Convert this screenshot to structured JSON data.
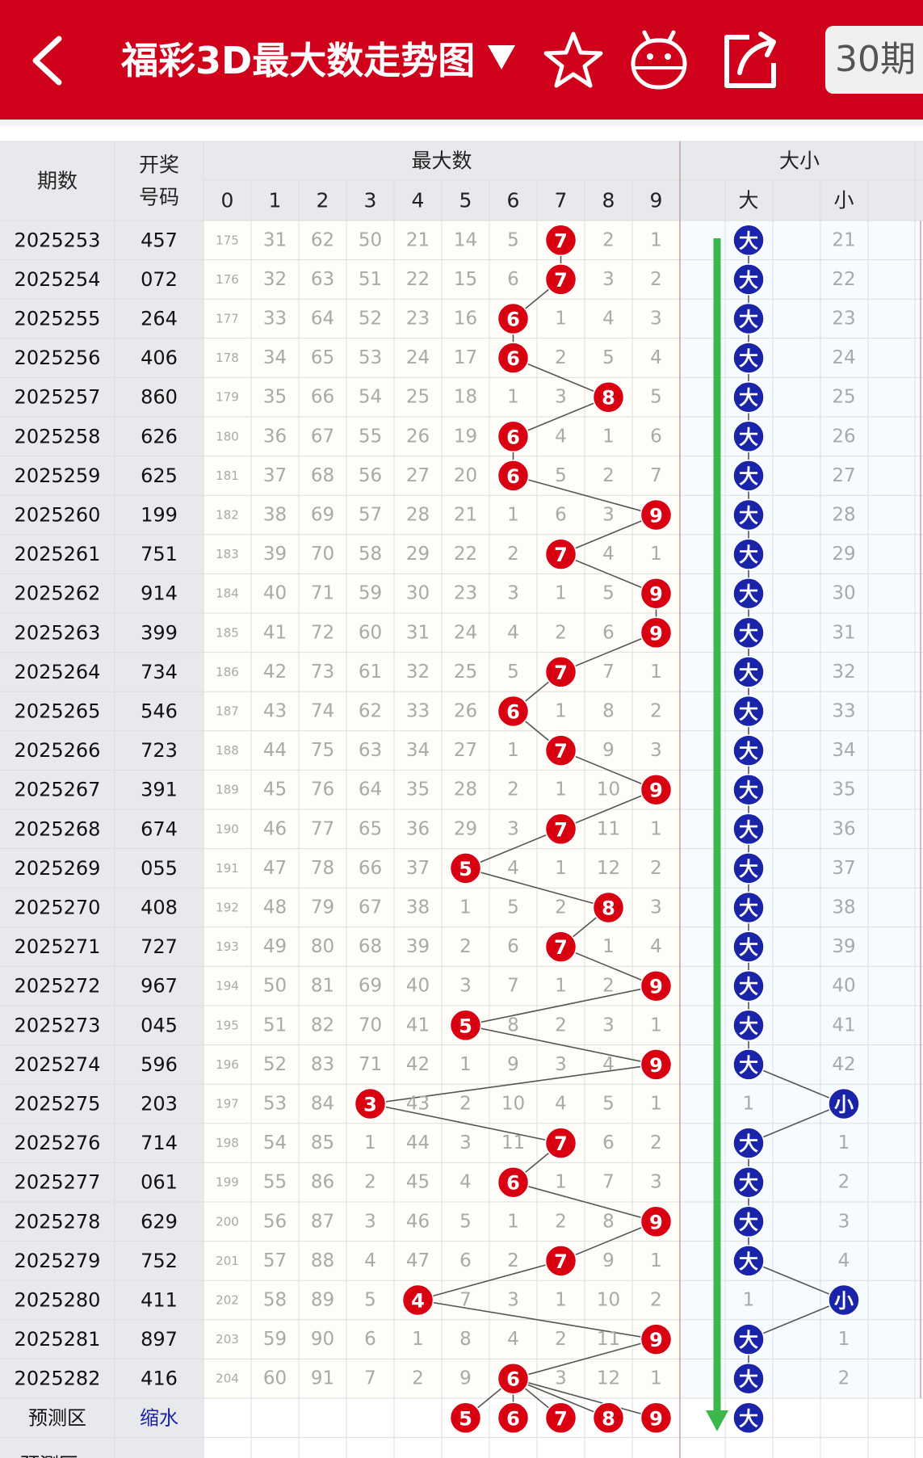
{
  "header": {
    "title": "福彩3D最大数走势图",
    "period_button": "30期"
  },
  "columns": {
    "issue": "期数",
    "draw_top": "开奖",
    "draw_bottom": "号码",
    "max_group": "最大数",
    "size_group": "大小",
    "digits": [
      "0",
      "1",
      "2",
      "3",
      "4",
      "5",
      "6",
      "7",
      "8",
      "9"
    ],
    "big": "大",
    "small": "小"
  },
  "rows": [
    {
      "issue": "2025253",
      "draw": "457",
      "miss": [
        "175",
        "31",
        "62",
        "50",
        "21",
        "14",
        "5",
        "7",
        "2",
        "1"
      ],
      "max": 7,
      "size": "大",
      "small_miss": "21"
    },
    {
      "issue": "2025254",
      "draw": "072",
      "miss": [
        "176",
        "32",
        "63",
        "51",
        "22",
        "15",
        "6",
        "7",
        "3",
        "2"
      ],
      "max": 7,
      "size": "大",
      "small_miss": "22"
    },
    {
      "issue": "2025255",
      "draw": "264",
      "miss": [
        "177",
        "33",
        "64",
        "52",
        "23",
        "16",
        "6",
        "1",
        "4",
        "3"
      ],
      "max": 6,
      "size": "大",
      "small_miss": "23"
    },
    {
      "issue": "2025256",
      "draw": "406",
      "miss": [
        "178",
        "34",
        "65",
        "53",
        "24",
        "17",
        "6",
        "2",
        "5",
        "4"
      ],
      "max": 6,
      "size": "大",
      "small_miss": "24"
    },
    {
      "issue": "2025257",
      "draw": "860",
      "miss": [
        "179",
        "35",
        "66",
        "54",
        "25",
        "18",
        "1",
        "3",
        "8",
        "5"
      ],
      "max": 8,
      "size": "大",
      "small_miss": "25"
    },
    {
      "issue": "2025258",
      "draw": "626",
      "miss": [
        "180",
        "36",
        "67",
        "55",
        "26",
        "19",
        "6",
        "4",
        "1",
        "6"
      ],
      "max": 6,
      "size": "大",
      "small_miss": "26"
    },
    {
      "issue": "2025259",
      "draw": "625",
      "miss": [
        "181",
        "37",
        "68",
        "56",
        "27",
        "20",
        "6",
        "5",
        "2",
        "7"
      ],
      "max": 6,
      "size": "大",
      "small_miss": "27"
    },
    {
      "issue": "2025260",
      "draw": "199",
      "miss": [
        "182",
        "38",
        "69",
        "57",
        "28",
        "21",
        "1",
        "6",
        "3",
        "9"
      ],
      "max": 9,
      "size": "大",
      "small_miss": "28"
    },
    {
      "issue": "2025261",
      "draw": "751",
      "miss": [
        "183",
        "39",
        "70",
        "58",
        "29",
        "22",
        "2",
        "7",
        "4",
        "1"
      ],
      "max": 7,
      "size": "大",
      "small_miss": "29"
    },
    {
      "issue": "2025262",
      "draw": "914",
      "miss": [
        "184",
        "40",
        "71",
        "59",
        "30",
        "23",
        "3",
        "1",
        "5",
        "9"
      ],
      "max": 9,
      "size": "大",
      "small_miss": "30"
    },
    {
      "issue": "2025263",
      "draw": "399",
      "miss": [
        "185",
        "41",
        "72",
        "60",
        "31",
        "24",
        "4",
        "2",
        "6",
        "9"
      ],
      "max": 9,
      "size": "大",
      "small_miss": "31"
    },
    {
      "issue": "2025264",
      "draw": "734",
      "miss": [
        "186",
        "42",
        "73",
        "61",
        "32",
        "25",
        "5",
        "7",
        "7",
        "1"
      ],
      "max": 7,
      "size": "大",
      "small_miss": "32"
    },
    {
      "issue": "2025265",
      "draw": "546",
      "miss": [
        "187",
        "43",
        "74",
        "62",
        "33",
        "26",
        "6",
        "1",
        "8",
        "2"
      ],
      "max": 6,
      "size": "大",
      "small_miss": "33"
    },
    {
      "issue": "2025266",
      "draw": "723",
      "miss": [
        "188",
        "44",
        "75",
        "63",
        "34",
        "27",
        "1",
        "7",
        "9",
        "3"
      ],
      "max": 7,
      "size": "大",
      "small_miss": "34"
    },
    {
      "issue": "2025267",
      "draw": "391",
      "miss": [
        "189",
        "45",
        "76",
        "64",
        "35",
        "28",
        "2",
        "1",
        "10",
        "9"
      ],
      "max": 9,
      "size": "大",
      "small_miss": "35"
    },
    {
      "issue": "2025268",
      "draw": "674",
      "miss": [
        "190",
        "46",
        "77",
        "65",
        "36",
        "29",
        "3",
        "7",
        "11",
        "1"
      ],
      "max": 7,
      "size": "大",
      "small_miss": "36"
    },
    {
      "issue": "2025269",
      "draw": "055",
      "miss": [
        "191",
        "47",
        "78",
        "66",
        "37",
        "5",
        "4",
        "1",
        "12",
        "2"
      ],
      "max": 5,
      "size": "大",
      "small_miss": "37"
    },
    {
      "issue": "2025270",
      "draw": "408",
      "miss": [
        "192",
        "48",
        "79",
        "67",
        "38",
        "1",
        "5",
        "2",
        "8",
        "3"
      ],
      "max": 8,
      "size": "大",
      "small_miss": "38"
    },
    {
      "issue": "2025271",
      "draw": "727",
      "miss": [
        "193",
        "49",
        "80",
        "68",
        "39",
        "2",
        "6",
        "7",
        "1",
        "4"
      ],
      "max": 7,
      "size": "大",
      "small_miss": "39"
    },
    {
      "issue": "2025272",
      "draw": "967",
      "miss": [
        "194",
        "50",
        "81",
        "69",
        "40",
        "3",
        "7",
        "1",
        "2",
        "9"
      ],
      "max": 9,
      "size": "大",
      "small_miss": "40"
    },
    {
      "issue": "2025273",
      "draw": "045",
      "miss": [
        "195",
        "51",
        "82",
        "70",
        "41",
        "5",
        "8",
        "2",
        "3",
        "1"
      ],
      "max": 5,
      "size": "大",
      "small_miss": "41"
    },
    {
      "issue": "2025274",
      "draw": "596",
      "miss": [
        "196",
        "52",
        "83",
        "71",
        "42",
        "1",
        "9",
        "3",
        "4",
        "9"
      ],
      "max": 9,
      "size": "大",
      "small_miss": "42"
    },
    {
      "issue": "2025275",
      "draw": "203",
      "miss": [
        "197",
        "53",
        "84",
        "3",
        "43",
        "2",
        "10",
        "4",
        "5",
        "1"
      ],
      "max": 3,
      "size": "小",
      "big_miss": "1"
    },
    {
      "issue": "2025276",
      "draw": "714",
      "miss": [
        "198",
        "54",
        "85",
        "1",
        "44",
        "3",
        "11",
        "7",
        "6",
        "2"
      ],
      "max": 7,
      "size": "大",
      "small_miss": "1"
    },
    {
      "issue": "2025277",
      "draw": "061",
      "miss": [
        "199",
        "55",
        "86",
        "2",
        "45",
        "4",
        "6",
        "1",
        "7",
        "3"
      ],
      "max": 6,
      "size": "大",
      "small_miss": "2"
    },
    {
      "issue": "2025278",
      "draw": "629",
      "miss": [
        "200",
        "56",
        "87",
        "3",
        "46",
        "5",
        "1",
        "2",
        "8",
        "9"
      ],
      "max": 9,
      "size": "大",
      "small_miss": "3"
    },
    {
      "issue": "2025279",
      "draw": "752",
      "miss": [
        "201",
        "57",
        "88",
        "4",
        "47",
        "6",
        "2",
        "7",
        "9",
        "1"
      ],
      "max": 7,
      "size": "大",
      "small_miss": "4"
    },
    {
      "issue": "2025280",
      "draw": "411",
      "miss": [
        "202",
        "58",
        "89",
        "5",
        "4",
        "7",
        "3",
        "1",
        "10",
        "2"
      ],
      "max": 4,
      "size": "小",
      "big_miss": "1"
    },
    {
      "issue": "2025281",
      "draw": "897",
      "miss": [
        "203",
        "59",
        "90",
        "6",
        "1",
        "8",
        "4",
        "2",
        "11",
        "9"
      ],
      "max": 9,
      "size": "大",
      "small_miss": "1"
    },
    {
      "issue": "2025282",
      "draw": "416",
      "miss": [
        "204",
        "60",
        "91",
        "7",
        "2",
        "9",
        "6",
        "3",
        "12",
        "1"
      ],
      "max": 6,
      "size": "大",
      "small_miss": "2"
    }
  ],
  "prediction": {
    "label": "预测区",
    "draw_text": "缩水",
    "numbers": [
      "5",
      "6",
      "7",
      "8",
      "9"
    ],
    "size": "大"
  },
  "prediction_plus": {
    "label": "预测区+"
  },
  "colors": {
    "header_red": "#d0021b",
    "ball_red": "#d90012",
    "ball_blue": "#1a24a8",
    "trend_line": "#555555",
    "arrow_green": "#3cb84a",
    "grid_line": "#dddddd",
    "miss_text": "#a9a9a9",
    "draw_link": "#1a24a8"
  }
}
